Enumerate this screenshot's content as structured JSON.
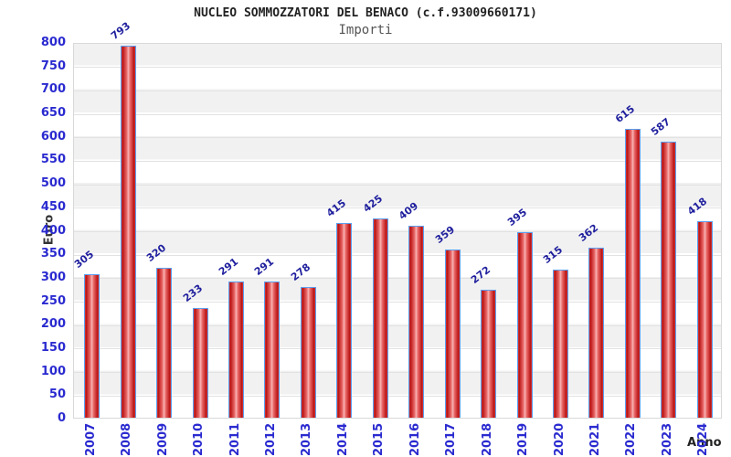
{
  "header": {
    "title": "NUCLEO SOMMOZZATORI DEL BENACO (c.f.93009660171)",
    "subtitle": "Importi"
  },
  "chart_data": {
    "type": "bar",
    "title": "NUCLEO SOMMOZZATORI DEL BENACO (c.f.93009660171)",
    "subtitle": "Importi",
    "xlabel": "Anno",
    "ylabel": "Euro",
    "categories": [
      "2007",
      "2008",
      "2009",
      "2010",
      "2011",
      "2012",
      "2013",
      "2014",
      "2015",
      "2016",
      "2017",
      "2018",
      "2019",
      "2020",
      "2021",
      "2022",
      "2023",
      "2024"
    ],
    "values": [
      305,
      793,
      320,
      233,
      291,
      291,
      278,
      415,
      425,
      409,
      359,
      272,
      395,
      315,
      362,
      615,
      587,
      418
    ],
    "ylim": [
      0,
      800
    ],
    "ytick_step": 50,
    "grid": true,
    "legend": "none",
    "colors": {
      "bar_edge_red": "#d84040",
      "bar_dark_red": "#b81212",
      "bar_mid_red": "#ea6a6a",
      "bar_highlight": "#f8b4b4",
      "bar_border_blue": "#5b9ff0",
      "axis_tick_blue": "#2a2ad0",
      "value_label_navy": "#1f1f9e",
      "band_gray": "#f1f1f1",
      "title_color": "#222222",
      "subtitle_color": "#555555"
    }
  }
}
